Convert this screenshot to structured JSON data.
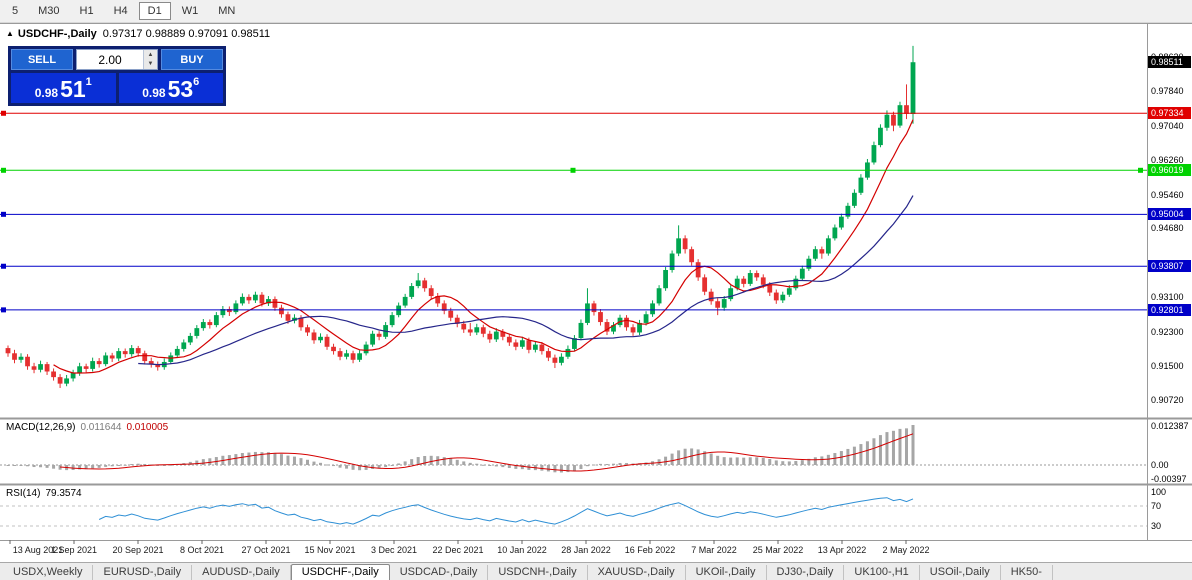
{
  "toolbar": {
    "buttons": [
      "5",
      "M30",
      "H1",
      "H4",
      "D1",
      "W1",
      "MN"
    ],
    "active": "D1"
  },
  "trade_panel": {
    "sell_label": "SELL",
    "buy_label": "BUY",
    "lot_value": "2.00",
    "sell_price_big": "0.98",
    "sell_price_main": "51",
    "sell_price_sup": "1",
    "buy_price_big": "0.98",
    "buy_price_main": "53",
    "buy_price_sup": "6"
  },
  "colors": {
    "up": "#00a650",
    "down": "#e53030",
    "ma_fast": "#d40000",
    "ma_slow": "#26268a",
    "macd_bar": "#a6a6a6",
    "macd_signal": "#d40000",
    "rsi": "#2e8fd5",
    "current_bg": "#000000"
  },
  "price_axis": {
    "ticks": [
      "0.98620",
      "0.97840",
      "0.97040",
      "0.96260",
      "0.95460",
      "0.94680",
      "0.93100",
      "0.92300",
      "0.91500",
      "0.90720"
    ]
  },
  "chart_data": {
    "type": "candlestick",
    "title": "USDCHF-,Daily",
    "ohlc_display": "0.97317 0.98889 0.97091 0.98511",
    "y_range": [
      0.904,
      0.993
    ],
    "x_labels": [
      "13 Aug 2021",
      "1 Sep 2021",
      "20 Sep 2021",
      "8 Oct 2021",
      "27 Oct 2021",
      "15 Nov 2021",
      "3 Dec 2021",
      "22 Dec 2021",
      "10 Jan 2022",
      "28 Jan 2022",
      "16 Feb 2022",
      "7 Mar 2022",
      "25 Mar 2022",
      "13 Apr 2022",
      "2 May 2022"
    ],
    "levels": [
      {
        "value": 0.97334,
        "label": "0.97334",
        "color": "#e00000",
        "selected": false
      },
      {
        "value": 0.96019,
        "label": "0.96019",
        "color": "#00d200",
        "selected": true
      },
      {
        "value": 0.95004,
        "label": "0.95004",
        "color": "#0000c8",
        "selected": false
      },
      {
        "value": 0.93807,
        "label": "0.93807",
        "color": "#0000c8",
        "selected": false
      },
      {
        "value": 0.92801,
        "label": "0.92801",
        "color": "#0000c8",
        "selected": false
      }
    ],
    "current_price": "0.98511",
    "indicators": {
      "ma": [
        {
          "period": 8,
          "color": "#d40000"
        },
        {
          "period": 21,
          "color": "#26268a"
        }
      ],
      "macd": {
        "name": "MACD(12,26,9)",
        "value_main": "0.011644",
        "value_signal": "0.010005",
        "fast": 12,
        "slow": 26,
        "signal": 9,
        "axis_top": "0.012387",
        "axis_zero": "0.00",
        "axis_bottom": "-0.00397"
      },
      "rsi": {
        "name": "RSI(14)",
        "value": "79.3574",
        "period": 14,
        "levels": [
          70,
          30
        ],
        "axis": [
          "100",
          "70",
          "30"
        ]
      }
    },
    "ohlc": [
      [
        0.9192,
        0.9198,
        0.9172,
        0.918
      ],
      [
        0.918,
        0.9188,
        0.9157,
        0.9165
      ],
      [
        0.9165,
        0.918,
        0.9158,
        0.9172
      ],
      [
        0.9172,
        0.9178,
        0.9142,
        0.915
      ],
      [
        0.915,
        0.9158,
        0.9134,
        0.9142
      ],
      [
        0.9142,
        0.9163,
        0.9136,
        0.9155
      ],
      [
        0.9155,
        0.916,
        0.913,
        0.9138
      ],
      [
        0.9138,
        0.9145,
        0.9117,
        0.9125
      ],
      [
        0.9125,
        0.9132,
        0.91,
        0.911
      ],
      [
        0.911,
        0.913,
        0.9104,
        0.9122
      ],
      [
        0.9122,
        0.9142,
        0.9115,
        0.9135
      ],
      [
        0.9135,
        0.9158,
        0.9128,
        0.915
      ],
      [
        0.915,
        0.9156,
        0.9136,
        0.9144
      ],
      [
        0.9144,
        0.917,
        0.9138,
        0.9162
      ],
      [
        0.9162,
        0.9169,
        0.9147,
        0.9155
      ],
      [
        0.9155,
        0.9182,
        0.915,
        0.9175
      ],
      [
        0.9175,
        0.9181,
        0.916,
        0.9168
      ],
      [
        0.9168,
        0.9192,
        0.9162,
        0.9185
      ],
      [
        0.9185,
        0.9191,
        0.917,
        0.9178
      ],
      [
        0.9178,
        0.9199,
        0.9172,
        0.9192
      ],
      [
        0.9192,
        0.9197,
        0.9172,
        0.918
      ],
      [
        0.918,
        0.9186,
        0.9154,
        0.9162
      ],
      [
        0.9162,
        0.917,
        0.9147,
        0.9155
      ],
      [
        0.9155,
        0.9161,
        0.914,
        0.9148
      ],
      [
        0.9148,
        0.9168,
        0.9142,
        0.916
      ],
      [
        0.916,
        0.9182,
        0.9155,
        0.9175
      ],
      [
        0.9175,
        0.9197,
        0.917,
        0.919
      ],
      [
        0.919,
        0.9212,
        0.9184,
        0.9205
      ],
      [
        0.9205,
        0.9227,
        0.9199,
        0.922
      ],
      [
        0.922,
        0.9245,
        0.9214,
        0.9238
      ],
      [
        0.9238,
        0.9259,
        0.9232,
        0.9252
      ],
      [
        0.9252,
        0.9258,
        0.9237,
        0.9245
      ],
      [
        0.9245,
        0.9275,
        0.924,
        0.9268
      ],
      [
        0.9268,
        0.9289,
        0.9262,
        0.9282
      ],
      [
        0.9282,
        0.9288,
        0.9266,
        0.9275
      ],
      [
        0.9275,
        0.9302,
        0.927,
        0.9295
      ],
      [
        0.9295,
        0.9318,
        0.929,
        0.931
      ],
      [
        0.931,
        0.9316,
        0.9294,
        0.9302
      ],
      [
        0.9302,
        0.9322,
        0.9296,
        0.9315
      ],
      [
        0.9315,
        0.9321,
        0.9288,
        0.9295
      ],
      [
        0.9295,
        0.9312,
        0.9289,
        0.9305
      ],
      [
        0.9305,
        0.9311,
        0.9278,
        0.9285
      ],
      [
        0.9285,
        0.9292,
        0.9262,
        0.927
      ],
      [
        0.927,
        0.9276,
        0.9248,
        0.9255
      ],
      [
        0.9255,
        0.927,
        0.9249,
        0.9262
      ],
      [
        0.9262,
        0.9268,
        0.9232,
        0.924
      ],
      [
        0.924,
        0.9246,
        0.922,
        0.9228
      ],
      [
        0.9228,
        0.9235,
        0.9202,
        0.921
      ],
      [
        0.921,
        0.9226,
        0.9204,
        0.9218
      ],
      [
        0.9218,
        0.9224,
        0.9188,
        0.9195
      ],
      [
        0.9195,
        0.9202,
        0.9177,
        0.9185
      ],
      [
        0.9185,
        0.9192,
        0.9164,
        0.9172
      ],
      [
        0.9172,
        0.9188,
        0.9166,
        0.918
      ],
      [
        0.918,
        0.9186,
        0.9157,
        0.9165
      ],
      [
        0.9165,
        0.9187,
        0.916,
        0.918
      ],
      [
        0.918,
        0.9207,
        0.9175,
        0.92
      ],
      [
        0.92,
        0.9232,
        0.9195,
        0.9225
      ],
      [
        0.9225,
        0.9231,
        0.921,
        0.9218
      ],
      [
        0.9218,
        0.9252,
        0.9213,
        0.9245
      ],
      [
        0.9245,
        0.9275,
        0.924,
        0.9268
      ],
      [
        0.9268,
        0.9297,
        0.9263,
        0.929
      ],
      [
        0.929,
        0.9317,
        0.9285,
        0.931
      ],
      [
        0.931,
        0.9342,
        0.9305,
        0.9335
      ],
      [
        0.9335,
        0.9365,
        0.933,
        0.9348
      ],
      [
        0.9348,
        0.9354,
        0.9322,
        0.933
      ],
      [
        0.933,
        0.9337,
        0.9304,
        0.9312
      ],
      [
        0.9312,
        0.9319,
        0.9287,
        0.9295
      ],
      [
        0.9295,
        0.9302,
        0.927,
        0.9278
      ],
      [
        0.9278,
        0.9285,
        0.9254,
        0.9262
      ],
      [
        0.9262,
        0.9269,
        0.924,
        0.9248
      ],
      [
        0.9248,
        0.9255,
        0.9227,
        0.9235
      ],
      [
        0.9235,
        0.925,
        0.922,
        0.9228
      ],
      [
        0.9228,
        0.9248,
        0.9222,
        0.924
      ],
      [
        0.924,
        0.9246,
        0.9217,
        0.9225
      ],
      [
        0.9225,
        0.9232,
        0.9204,
        0.9212
      ],
      [
        0.9212,
        0.9238,
        0.9206,
        0.923
      ],
      [
        0.923,
        0.9236,
        0.921,
        0.9218
      ],
      [
        0.9218,
        0.9224,
        0.9197,
        0.9205
      ],
      [
        0.9205,
        0.9212,
        0.9187,
        0.9195
      ],
      [
        0.9195,
        0.9218,
        0.919,
        0.921
      ],
      [
        0.921,
        0.9216,
        0.918,
        0.9188
      ],
      [
        0.9188,
        0.9208,
        0.9182,
        0.92
      ],
      [
        0.92,
        0.9206,
        0.9177,
        0.9185
      ],
      [
        0.9185,
        0.9192,
        0.9162,
        0.917
      ],
      [
        0.917,
        0.9177,
        0.9146,
        0.9158
      ],
      [
        0.9158,
        0.918,
        0.9152,
        0.9172
      ],
      [
        0.9172,
        0.9198,
        0.9167,
        0.919
      ],
      [
        0.919,
        0.9222,
        0.9185,
        0.9215
      ],
      [
        0.9215,
        0.9258,
        0.921,
        0.925
      ],
      [
        0.925,
        0.933,
        0.9245,
        0.9295
      ],
      [
        0.9295,
        0.9301,
        0.9267,
        0.9275
      ],
      [
        0.9275,
        0.9282,
        0.9244,
        0.9252
      ],
      [
        0.9252,
        0.9259,
        0.9222,
        0.923
      ],
      [
        0.923,
        0.9252,
        0.9224,
        0.9245
      ],
      [
        0.9245,
        0.9269,
        0.924,
        0.9262
      ],
      [
        0.9262,
        0.9268,
        0.9232,
        0.924
      ],
      [
        0.924,
        0.9247,
        0.922,
        0.9228
      ],
      [
        0.9228,
        0.9257,
        0.9222,
        0.925
      ],
      [
        0.925,
        0.9277,
        0.9244,
        0.927
      ],
      [
        0.927,
        0.9302,
        0.9264,
        0.9295
      ],
      [
        0.9295,
        0.9337,
        0.929,
        0.933
      ],
      [
        0.933,
        0.9379,
        0.9324,
        0.9372
      ],
      [
        0.9372,
        0.9417,
        0.9366,
        0.941
      ],
      [
        0.941,
        0.9475,
        0.9404,
        0.9445
      ],
      [
        0.9445,
        0.9452,
        0.941,
        0.942
      ],
      [
        0.942,
        0.9426,
        0.9382,
        0.939
      ],
      [
        0.939,
        0.9397,
        0.9347,
        0.9355
      ],
      [
        0.9355,
        0.9362,
        0.9314,
        0.9322
      ],
      [
        0.9322,
        0.9329,
        0.9292,
        0.93
      ],
      [
        0.93,
        0.9307,
        0.9268,
        0.9285
      ],
      [
        0.9285,
        0.9312,
        0.9278,
        0.9305
      ],
      [
        0.9305,
        0.9337,
        0.93,
        0.933
      ],
      [
        0.933,
        0.9359,
        0.9325,
        0.9352
      ],
      [
        0.9352,
        0.9358,
        0.9332,
        0.934
      ],
      [
        0.934,
        0.9372,
        0.9335,
        0.9365
      ],
      [
        0.9365,
        0.9371,
        0.9347,
        0.9355
      ],
      [
        0.9355,
        0.9362,
        0.933,
        0.9338
      ],
      [
        0.9338,
        0.9344,
        0.9312,
        0.932
      ],
      [
        0.932,
        0.9327,
        0.9294,
        0.9302
      ],
      [
        0.9302,
        0.9322,
        0.9296,
        0.9315
      ],
      [
        0.9315,
        0.9337,
        0.931,
        0.933
      ],
      [
        0.933,
        0.9359,
        0.9325,
        0.9352
      ],
      [
        0.9352,
        0.9382,
        0.9347,
        0.9375
      ],
      [
        0.9375,
        0.9405,
        0.937,
        0.9398
      ],
      [
        0.9398,
        0.9427,
        0.9393,
        0.942
      ],
      [
        0.942,
        0.9426,
        0.9398,
        0.941
      ],
      [
        0.941,
        0.9452,
        0.9405,
        0.9445
      ],
      [
        0.9445,
        0.9477,
        0.944,
        0.947
      ],
      [
        0.947,
        0.9502,
        0.9465,
        0.9495
      ],
      [
        0.9495,
        0.9527,
        0.949,
        0.952
      ],
      [
        0.952,
        0.9558,
        0.9515,
        0.955
      ],
      [
        0.955,
        0.9593,
        0.9545,
        0.9585
      ],
      [
        0.9585,
        0.9628,
        0.958,
        0.962
      ],
      [
        0.962,
        0.9668,
        0.9615,
        0.966
      ],
      [
        0.966,
        0.9708,
        0.9655,
        0.97
      ],
      [
        0.97,
        0.974,
        0.9693,
        0.973
      ],
      [
        0.973,
        0.9737,
        0.9692,
        0.9705
      ],
      [
        0.9705,
        0.976,
        0.97,
        0.9752
      ],
      [
        0.9752,
        0.98,
        0.972,
        0.9732
      ],
      [
        0.97317,
        0.98889,
        0.97091,
        0.98511
      ]
    ]
  },
  "bottom_tabs": {
    "active_index": 3,
    "tabs": [
      "USDX,Weekly",
      "EURUSD-,Daily",
      "AUDUSD-,Daily",
      "USDCHF-,Daily",
      "USDCAD-,Daily",
      "USDCNH-,Daily",
      "XAUUSD-,Daily",
      "UKOil-,Daily",
      "DJ30-,Daily",
      "UK100-,H1",
      "USOil-,Daily",
      "HK50-"
    ]
  }
}
